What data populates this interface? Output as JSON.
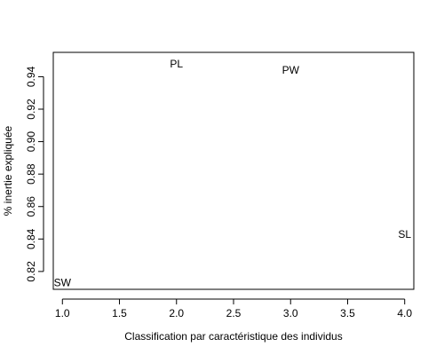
{
  "chart_data": {
    "type": "scatter",
    "title": "",
    "xlabel": "Classification par caractéristique des individus",
    "ylabel": "% inertie expliquée",
    "xlim": [
      0.92,
      4.08
    ],
    "ylim": [
      0.809,
      0.955
    ],
    "xticks": [
      1.0,
      1.5,
      2.0,
      2.5,
      3.0,
      3.5,
      4.0
    ],
    "xtick_labels": [
      "1.0",
      "1.5",
      "2.0",
      "2.5",
      "3.0",
      "3.5",
      "4.0"
    ],
    "yticks": [
      0.82,
      0.84,
      0.86,
      0.88,
      0.9,
      0.92,
      0.94
    ],
    "ytick_labels": [
      "0.82",
      "0.84",
      "0.86",
      "0.88",
      "0.90",
      "0.92",
      "0.94"
    ],
    "grid": false,
    "legend": "none",
    "points": [
      {
        "x": 1,
        "y": 0.813,
        "label": "SW"
      },
      {
        "x": 2,
        "y": 0.948,
        "label": "PL"
      },
      {
        "x": 3,
        "y": 0.944,
        "label": "PW"
      },
      {
        "x": 4,
        "y": 0.843,
        "label": "SL"
      }
    ]
  }
}
